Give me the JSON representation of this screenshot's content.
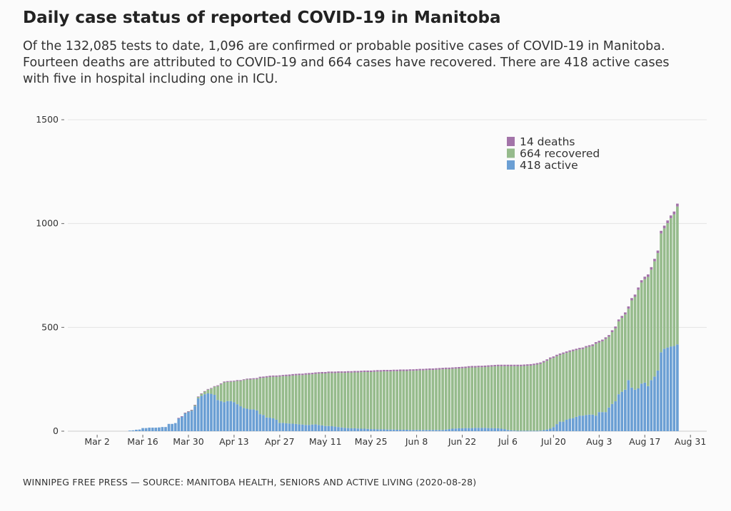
{
  "title": "Daily case status of reported COVID-19 in Manitoba",
  "subtitle": "Of the 132,085 tests to date, 1,096 are confirmed or probable positive cases of COVID-19 in Manitoba. Fourteen deaths are attributed to COVID-19 and 664 cases have recovered. There are 418 active cases with five in hospital including one in ICU.",
  "footer": "WINNIPEG FREE PRESS — SOURCE: MANITOBA HEALTH, SENIORS AND ACTIVE LIVING (2020-08-28)",
  "chart_data": {
    "type": "bar",
    "stacked": true,
    "grid": "horizontal",
    "legend_position": "top-right",
    "ylim": [
      0,
      1500
    ],
    "yticks": [
      0,
      500,
      1000,
      1500
    ],
    "ytick_labels": [
      "0",
      "500",
      "1000",
      "1500"
    ],
    "xlim": [
      "2020-02-22",
      "2020-09-05"
    ],
    "xticks": [
      "2020-03-02",
      "2020-03-16",
      "2020-03-30",
      "2020-04-13",
      "2020-04-27",
      "2020-05-11",
      "2020-05-25",
      "2020-06-08",
      "2020-06-22",
      "2020-07-06",
      "2020-07-20",
      "2020-08-03",
      "2020-08-17",
      "2020-08-31"
    ],
    "xtick_labels": [
      "Mar  2",
      "Mar 16",
      "Mar 30",
      "Apr 13",
      "Apr 27",
      "May 11",
      "May 25",
      "Jun  8",
      "Jun 22",
      "Jul  6",
      "Jul 20",
      "Aug  3",
      "Aug 17",
      "Aug 31"
    ],
    "dates": [
      "2020-03-12",
      "2020-03-13",
      "2020-03-14",
      "2020-03-15",
      "2020-03-16",
      "2020-03-17",
      "2020-03-18",
      "2020-03-19",
      "2020-03-20",
      "2020-03-21",
      "2020-03-22",
      "2020-03-23",
      "2020-03-24",
      "2020-03-25",
      "2020-03-26",
      "2020-03-27",
      "2020-03-28",
      "2020-03-29",
      "2020-03-30",
      "2020-03-31",
      "2020-04-01",
      "2020-04-02",
      "2020-04-03",
      "2020-04-04",
      "2020-04-05",
      "2020-04-06",
      "2020-04-07",
      "2020-04-08",
      "2020-04-09",
      "2020-04-10",
      "2020-04-11",
      "2020-04-12",
      "2020-04-13",
      "2020-04-14",
      "2020-04-15",
      "2020-04-16",
      "2020-04-17",
      "2020-04-18",
      "2020-04-19",
      "2020-04-20",
      "2020-04-21",
      "2020-04-22",
      "2020-04-23",
      "2020-04-24",
      "2020-04-25",
      "2020-04-26",
      "2020-04-27",
      "2020-04-28",
      "2020-04-29",
      "2020-04-30",
      "2020-05-01",
      "2020-05-02",
      "2020-05-03",
      "2020-05-04",
      "2020-05-05",
      "2020-05-06",
      "2020-05-07",
      "2020-05-08",
      "2020-05-09",
      "2020-05-10",
      "2020-05-11",
      "2020-05-12",
      "2020-05-13",
      "2020-05-14",
      "2020-05-15",
      "2020-05-16",
      "2020-05-17",
      "2020-05-18",
      "2020-05-19",
      "2020-05-20",
      "2020-05-21",
      "2020-05-22",
      "2020-05-23",
      "2020-05-24",
      "2020-05-25",
      "2020-05-26",
      "2020-05-27",
      "2020-05-28",
      "2020-05-29",
      "2020-05-30",
      "2020-05-31",
      "2020-06-01",
      "2020-06-02",
      "2020-06-03",
      "2020-06-04",
      "2020-06-05",
      "2020-06-06",
      "2020-06-07",
      "2020-06-08",
      "2020-06-09",
      "2020-06-10",
      "2020-06-11",
      "2020-06-12",
      "2020-06-13",
      "2020-06-14",
      "2020-06-15",
      "2020-06-16",
      "2020-06-17",
      "2020-06-18",
      "2020-06-19",
      "2020-06-20",
      "2020-06-21",
      "2020-06-22",
      "2020-06-23",
      "2020-06-24",
      "2020-06-25",
      "2020-06-26",
      "2020-06-27",
      "2020-06-28",
      "2020-06-29",
      "2020-06-30",
      "2020-07-01",
      "2020-07-02",
      "2020-07-03",
      "2020-07-04",
      "2020-07-05",
      "2020-07-06",
      "2020-07-07",
      "2020-07-08",
      "2020-07-09",
      "2020-07-10",
      "2020-07-11",
      "2020-07-12",
      "2020-07-13",
      "2020-07-14",
      "2020-07-15",
      "2020-07-16",
      "2020-07-17",
      "2020-07-18",
      "2020-07-19",
      "2020-07-20",
      "2020-07-21",
      "2020-07-22",
      "2020-07-23",
      "2020-07-24",
      "2020-07-25",
      "2020-07-26",
      "2020-07-27",
      "2020-07-28",
      "2020-07-29",
      "2020-07-30",
      "2020-07-31",
      "2020-08-01",
      "2020-08-02",
      "2020-08-03",
      "2020-08-04",
      "2020-08-05",
      "2020-08-06",
      "2020-08-07",
      "2020-08-08",
      "2020-08-09",
      "2020-08-10",
      "2020-08-11",
      "2020-08-12",
      "2020-08-13",
      "2020-08-14",
      "2020-08-15",
      "2020-08-16",
      "2020-08-17",
      "2020-08-18",
      "2020-08-19",
      "2020-08-20",
      "2020-08-21",
      "2020-08-22",
      "2020-08-23",
      "2020-08-24",
      "2020-08-25",
      "2020-08-26",
      "2020-08-27"
    ],
    "series": [
      {
        "name": "418 active",
        "color": "#6b9fd4",
        "values": [
          3,
          4,
          7,
          8,
          15,
          15,
          17,
          17,
          17,
          18,
          20,
          20,
          35,
          35,
          39,
          63,
          71,
          87,
          93,
          98,
          120,
          158,
          170,
          178,
          182,
          180,
          175,
          150,
          145,
          140,
          145,
          145,
          140,
          130,
          120,
          112,
          108,
          105,
          105,
          100,
          82,
          78,
          66,
          65,
          62,
          55,
          40,
          40,
          38,
          37,
          36,
          35,
          33,
          32,
          30,
          30,
          32,
          33,
          30,
          28,
          25,
          25,
          24,
          22,
          20,
          18,
          16,
          15,
          14,
          14,
          13,
          12,
          12,
          11,
          10,
          10,
          9,
          9,
          9,
          8,
          8,
          8,
          7,
          7,
          7,
          7,
          6,
          6,
          6,
          6,
          6,
          6,
          6,
          6,
          6,
          6,
          6,
          8,
          10,
          12,
          13,
          14,
          14,
          15,
          15,
          15,
          16,
          16,
          16,
          16,
          15,
          15,
          14,
          14,
          12,
          10,
          6,
          4,
          3,
          2,
          2,
          2,
          2,
          2,
          2,
          2,
          3,
          5,
          8,
          12,
          20,
          34,
          46,
          46,
          55,
          60,
          63,
          69,
          75,
          75,
          78,
          80,
          80,
          75,
          92,
          92,
          92,
          114,
          131,
          144,
          178,
          190,
          200,
          246,
          210,
          200,
          206,
          229,
          234,
          217,
          246,
          263,
          292,
          380,
          397,
          403,
          408,
          410,
          418
        ]
      },
      {
        "name": "664 recovered",
        "color": "#96bb8c",
        "values": [
          0,
          0,
          0,
          0,
          0,
          0,
          0,
          0,
          0,
          0,
          0,
          0,
          0,
          0,
          0,
          0,
          0,
          1,
          2,
          4,
          6,
          7,
          10,
          13,
          18,
          25,
          39,
          67,
          81,
          95,
          92,
          93,
          99,
          112,
          122,
          134,
          141,
          144,
          145,
          151,
          174,
          179,
          193,
          196,
          200,
          207,
          223,
          225,
          227,
          229,
          232,
          234,
          237,
          238,
          242,
          243,
          242,
          243,
          247,
          250,
          253,
          255,
          256,
          258,
          261,
          263,
          265,
          267,
          268,
          269,
          270,
          272,
          273,
          274,
          275,
          276,
          278,
          278,
          279,
          280,
          280,
          281,
          282,
          283,
          283,
          283,
          285,
          285,
          286,
          287,
          287,
          288,
          289,
          289,
          290,
          291,
          292,
          291,
          289,
          288,
          288,
          288,
          289,
          289,
          291,
          292,
          291,
          292,
          292,
          293,
          295,
          296,
          298,
          299,
          301,
          303,
          307,
          309,
          310,
          311,
          311,
          312,
          313,
          314,
          316,
          319,
          321,
          326,
          331,
          336,
          333,
          327,
          321,
          326,
          322,
          322,
          323,
          321,
          319,
          321,
          325,
          327,
          330,
          346,
          335,
          341,
          352,
          341,
          346,
          351,
          351,
          356,
          362,
          344,
          420,
          447,
          475,
          487,
          498,
          526,
          532,
          555,
          566,
          572,
          580,
          599,
          618,
          634,
          664
        ]
      },
      {
        "name": "14 deaths",
        "color": "#a374a9",
        "values": [
          0,
          0,
          0,
          0,
          0,
          0,
          0,
          0,
          0,
          0,
          0,
          0,
          0,
          0,
          0,
          1,
          1,
          1,
          1,
          1,
          1,
          2,
          2,
          2,
          3,
          3,
          3,
          4,
          4,
          4,
          4,
          4,
          4,
          4,
          4,
          4,
          4,
          5,
          5,
          5,
          6,
          6,
          6,
          6,
          6,
          6,
          6,
          6,
          7,
          7,
          7,
          7,
          7,
          7,
          7,
          7,
          7,
          7,
          7,
          7,
          7,
          7,
          7,
          7,
          7,
          7,
          7,
          7,
          7,
          7,
          7,
          7,
          7,
          7,
          7,
          7,
          7,
          7,
          7,
          7,
          7,
          7,
          7,
          7,
          7,
          7,
          7,
          7,
          7,
          7,
          7,
          7,
          7,
          7,
          7,
          7,
          7,
          7,
          7,
          7,
          7,
          7,
          7,
          7,
          7,
          7,
          7,
          7,
          7,
          7,
          7,
          7,
          7,
          7,
          7,
          7,
          7,
          7,
          7,
          7,
          7,
          7,
          7,
          7,
          7,
          7,
          7,
          7,
          7,
          7,
          7,
          7,
          7,
          7,
          7,
          7,
          7,
          7,
          7,
          7,
          7,
          7,
          8,
          8,
          8,
          8,
          8,
          8,
          9,
          9,
          9,
          9,
          10,
          11,
          11,
          11,
          11,
          11,
          12,
          12,
          12,
          12,
          12,
          13,
          13,
          13,
          13,
          14,
          14
        ]
      }
    ],
    "legend_order": [
      2,
      1,
      0
    ]
  }
}
